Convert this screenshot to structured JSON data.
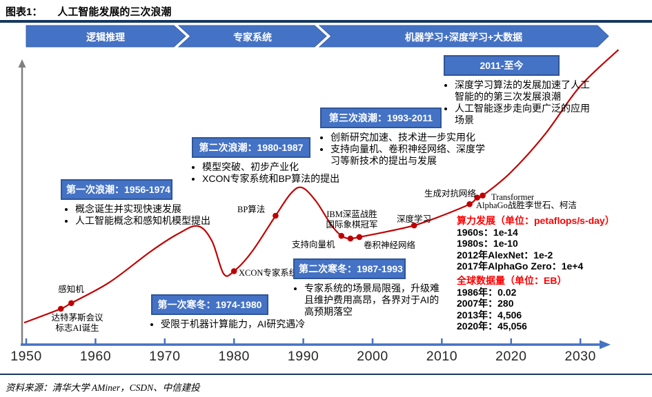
{
  "page": {
    "title_prefix": "图表1：",
    "title_text": "人工智能发展的三次浪潮",
    "source": "资料来源：清华大学 AMiner，CSDN、中信建投"
  },
  "colors": {
    "accent": "#4472C4",
    "accent-border": "#2E5597",
    "navy": "#17375E",
    "curve": "#C00000",
    "statred": "#FF0000",
    "axisgray": "#808080"
  },
  "banner": {
    "segments": [
      {
        "label": "逻辑推理"
      },
      {
        "label": "专家系统"
      },
      {
        "label": "机器学习+深度学习+大数据"
      }
    ]
  },
  "callouts": [
    {
      "title": "第一次浪潮：1956-1974",
      "bullets": [
        "概念诞生并实现快速发展",
        "人工智能概念和感知机模型提出"
      ]
    },
    {
      "title": "第二次浪潮：1980-1987",
      "bullets": [
        "模型突破、初步产业化",
        "XCON专家系统和BP算法的提出"
      ]
    },
    {
      "title": "第三次浪潮：1993-2011",
      "bullets": [
        "创新研究加速、技术进一步实用化",
        "支持向量机、卷积神经网络、深度学习等新技术的提出与发展"
      ]
    },
    {
      "title": "2011-至今",
      "bullets": [
        "深度学习算法的发展加速了人工智能的的第三次发展浪潮",
        "人工智能逐步走向更广泛的应用场景"
      ]
    },
    {
      "title": "第一次寒冬：1974-1980",
      "bullets": [
        "受限于机器计算能力，AI研究遇冷"
      ]
    },
    {
      "title": "第二次寒冬：1987-1993",
      "bullets": [
        "专家系统的场景局限强，升级难且维护费用高昂，各界对于AI的高预期落空"
      ]
    }
  ],
  "stats": [
    {
      "header": "算力发展（单位：petaflops/s-day）",
      "lines": [
        "1960s：1e-14",
        "1980s：1e-10",
        "2012年AlexNet：1e-2",
        "2017年AlphaGo Zero：1e+4"
      ]
    },
    {
      "header": "全球数据量（单位：EB）",
      "lines": [
        "1986年：0.02",
        "2007年：280",
        "2013年：4,506",
        "2020年：45,056"
      ]
    }
  ],
  "chart_data": {
    "type": "line",
    "title": "人工智能发展的三次浪潮",
    "x_axis": {
      "ticks": [
        "1950",
        "1960",
        "1970",
        "1980",
        "1990",
        "2000",
        "2010",
        "2020",
        "2030"
      ],
      "range": [
        1950,
        2035
      ],
      "arrow": true
    },
    "y_axis": {
      "qualitative": true,
      "arrow": true
    },
    "legend": "none",
    "grid": false,
    "curve": {
      "color": "#C00000",
      "points": [
        [
          1949.7,
          7.4
        ],
        [
          1955.0,
          12.1
        ],
        [
          1956.5,
          14.0
        ],
        [
          1962,
          21
        ],
        [
          1968,
          31.5
        ],
        [
          1972,
          37.5
        ],
        [
          1974.8,
          40.0
        ],
        [
          1976.8,
          35.0
        ],
        [
          1978.5,
          23.9
        ],
        [
          1980.0,
          24.8
        ],
        [
          1982.6,
          31.4
        ],
        [
          1986.0,
          43.5
        ],
        [
          1988.2,
          51.0
        ],
        [
          1989.8,
          53.0
        ],
        [
          1991.8,
          48.5
        ],
        [
          1994.0,
          40.5
        ],
        [
          1995.5,
          36.7
        ],
        [
          1996.8,
          35.8
        ],
        [
          1998.1,
          36.3
        ],
        [
          2002,
          38.1
        ],
        [
          2006,
          40.2
        ],
        [
          2010,
          43.5
        ],
        [
          2014,
          47.4
        ],
        [
          2015.1,
          49.6
        ],
        [
          2015.9,
          50.3
        ],
        [
          2019.9,
          58
        ],
        [
          2024.9,
          71
        ],
        [
          2029.9,
          87
        ],
        [
          2035.5,
          99.5
        ]
      ]
    },
    "events": [
      {
        "label": "达特茅斯会议\n标志AI诞生",
        "year": 1955.0,
        "level": 12.1
      },
      {
        "label": "感知机",
        "year": 1956.5,
        "level": 14.0
      },
      {
        "label": "XCON专家系统",
        "year": 1980.0,
        "level": 24.8
      },
      {
        "label": "BP算法",
        "year": 1986.0,
        "level": 43.5
      },
      {
        "label": "支持向量机",
        "year": 1995.5,
        "level": 36.7
      },
      {
        "label": "IBM深蓝战胜\n国际象棋冠军",
        "year": 1996.8,
        "level": 35.8
      },
      {
        "label": "卷积神经网络",
        "year": 1998.1,
        "level": 36.3
      },
      {
        "label": "深度学习",
        "year": 2006.0,
        "level": 40.2
      },
      {
        "label": "生成对抗网络",
        "year": 2014.0,
        "level": 47.4
      },
      {
        "label": "AlphaGo战胜李世石、柯洁",
        "year": 2015.1,
        "level": 49.6
      },
      {
        "label": "Transformer",
        "year": 2015.9,
        "level": 50.3
      }
    ]
  }
}
